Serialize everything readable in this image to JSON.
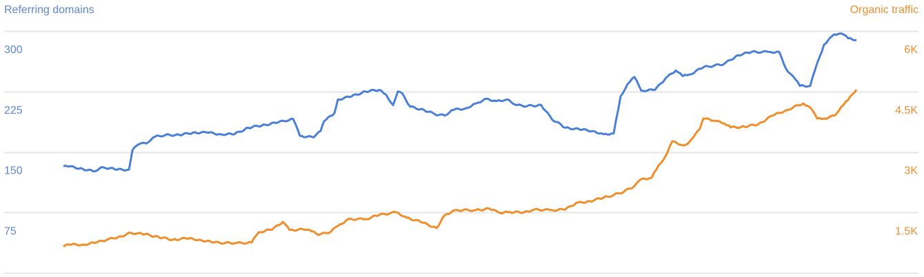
{
  "chart_data": {
    "type": "line",
    "title": "",
    "ylabel_left": "Referring domains",
    "ylabel_right": "Organic traffic",
    "y_left": {
      "range": [
        0,
        300
      ],
      "ticks": [
        75,
        150,
        225,
        300
      ],
      "tick_labels": [
        "75",
        "150",
        "225",
        "300"
      ]
    },
    "y_right": {
      "range": [
        0,
        6000
      ],
      "ticks": [
        1500,
        3000,
        4500,
        6000
      ],
      "tick_labels": [
        "1.5K",
        "3K",
        "4.5K",
        "6K"
      ]
    },
    "grid": true,
    "colors": {
      "left": "#4a7fd8",
      "right": "#ef8e2a",
      "left_text": "#5f86d8",
      "right_text": "#ef8e2f"
    },
    "series": [
      {
        "name": "Referring domains",
        "axis": "left",
        "values": [
          132,
          132,
          129,
          126,
          131,
          128,
          128,
          152,
          159,
          162,
          169,
          171,
          171,
          174,
          174,
          172,
          172,
          180,
          183,
          186,
          191,
          170,
          168,
          176,
          188,
          198,
          215,
          219,
          225,
          227,
          221,
          208,
          225,
          223,
          206,
          202,
          197,
          195,
          202,
          204,
          210,
          216,
          213,
          215,
          208,
          207,
          208,
          191,
          180,
          178,
          176,
          172,
          173,
          219,
          234,
          243,
          226,
          227,
          241,
          251,
          244,
          246,
          255,
          259,
          270,
          274,
          274,
          274,
          253,
          244,
          232,
          232,
          260,
          283,
          296,
          297,
          291,
          289
        ]
      },
      {
        "name": "Organic traffic",
        "axis": "right",
        "values": [
          650,
          701,
          701,
          752,
          821,
          906,
          991,
          957,
          889,
          821,
          855,
          821,
          752,
          735,
          752,
          1009,
          1077,
          1265,
          1060,
          1077,
          1026,
          940,
          1026,
          1162,
          1333,
          1333,
          1436,
          1504,
          1368,
          1265,
          1111,
          1436,
          1556,
          1556,
          1590,
          1487,
          1504,
          1504,
          1573,
          1556,
          1573,
          1726,
          1778,
          1863,
          1932,
          2017,
          2154,
          2325,
          2359,
          2667,
          2889,
          3265,
          3180,
          3180,
          3350,
          3573,
          3829,
          3778,
          3709,
          3607,
          3624,
          3692,
          3897,
          4034,
          4205,
          4103,
          3829,
          3829,
          3897,
          4120,
          4291,
          4547
        ]
      }
    ]
  }
}
